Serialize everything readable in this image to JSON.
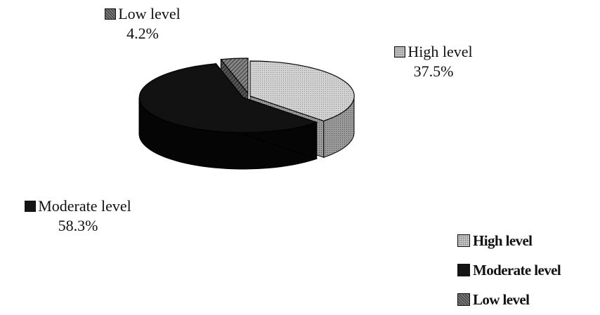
{
  "chart_data": {
    "type": "pie",
    "categories": [
      "High level",
      "Moderate level",
      "Low level"
    ],
    "values": [
      37.5,
      58.3,
      4.2
    ],
    "value_labels": [
      "37.5%",
      "58.3%",
      "4.2%"
    ],
    "colors": [
      "#cfcfcf",
      "#151515",
      "#7a7a7a"
    ],
    "legend_placement": "bottom-right",
    "style": "3d-exploded"
  }
}
